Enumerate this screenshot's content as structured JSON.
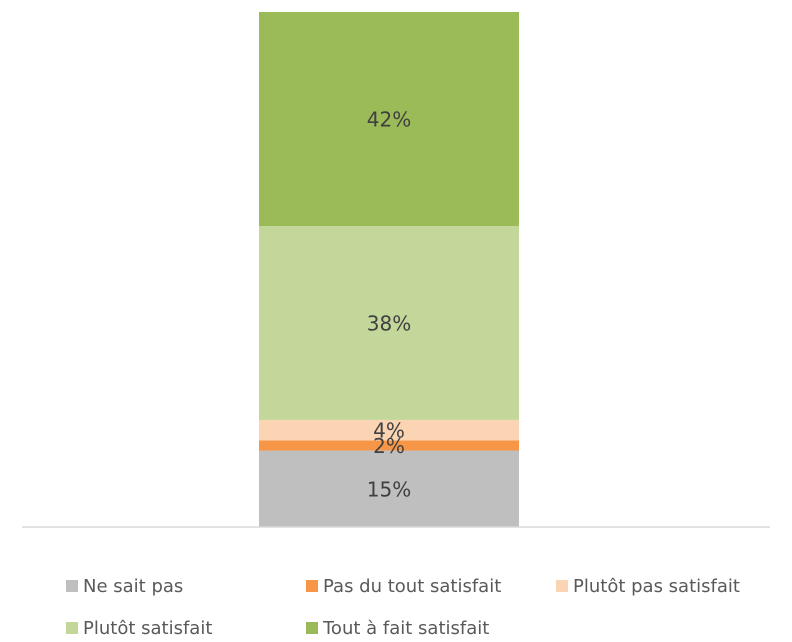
{
  "chart_data": {
    "type": "stacked_bar",
    "categories": [
      null
    ],
    "series": [
      {
        "name": "Ne sait pas",
        "color": "#bfbfbf",
        "values": [
          15
        ],
        "value_labels": [
          "15%"
        ]
      },
      {
        "name": "Pas du tout satisfait",
        "color": "#f79646",
        "values": [
          2
        ],
        "value_labels": [
          "2%"
        ]
      },
      {
        "name": "Plutôt pas satisfait",
        "color": "#fbd4b4",
        "values": [
          4
        ],
        "value_labels": [
          "4%"
        ]
      },
      {
        "name": "Plutôt satisfait",
        "color": "#c4d79b",
        "values": [
          38
        ],
        "value_labels": [
          "38%"
        ]
      },
      {
        "name": "Tout à fait satisfait",
        "color": "#9bbb59",
        "values": [
          42
        ],
        "value_labels": [
          "42%"
        ]
      }
    ],
    "legend": "bottom"
  }
}
